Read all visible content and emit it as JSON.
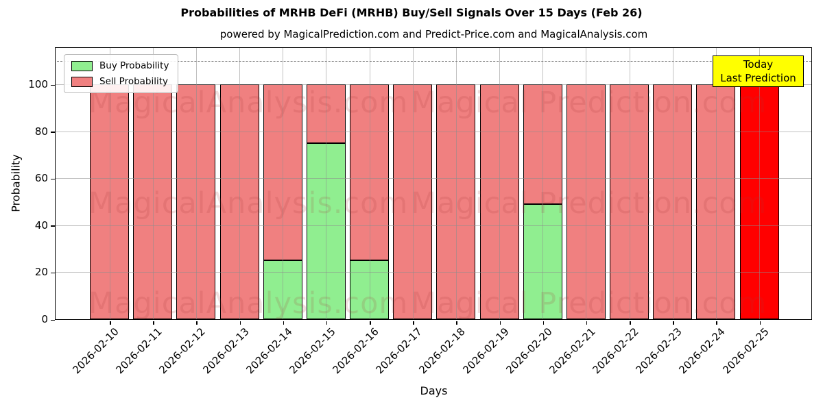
{
  "title": "Probabilities of MRHB DeFi (MRHB) Buy/Sell Signals Over 15 Days (Feb 26)",
  "subtitle": "powered by MagicalPrediction.com and Predict-Price.com and MagicalAnalysis.com",
  "legend": {
    "buy_label": "Buy Probability",
    "sell_label": "Sell Probability"
  },
  "annotation_box": {
    "line1": "Today",
    "line2": "Last Prediction",
    "bg": "#ffff00"
  },
  "watermarks": {
    "left": "MagicalAnalysis.com",
    "right": "Magical Prediction.com"
  },
  "colors": {
    "buy": "#90ee90",
    "sell": "#f08080",
    "today": "#ff0000",
    "grid": "#8c8c8c",
    "dashed_line": "#777777"
  },
  "chart_data": {
    "type": "bar",
    "stacked": true,
    "title": "Probabilities of MRHB DeFi (MRHB) Buy/Sell Signals Over 15 Days (Feb 26)",
    "xlabel": "Days",
    "ylabel": "Probability",
    "categories": [
      "2026-02-10",
      "2026-02-11",
      "2026-02-12",
      "2026-02-13",
      "2026-02-14",
      "2026-02-15",
      "2026-02-16",
      "2026-02-17",
      "2026-02-18",
      "2026-02-19",
      "2026-02-20",
      "2026-02-21",
      "2026-02-22",
      "2026-02-23",
      "2026-02-24",
      "2026-02-25"
    ],
    "series": [
      {
        "name": "Buy Probability",
        "color": "#90ee90",
        "values": [
          0,
          0,
          0,
          0,
          25,
          75,
          25,
          0,
          0,
          0,
          49,
          0,
          0,
          0,
          0,
          0
        ]
      },
      {
        "name": "Sell Probability",
        "color": "#f08080",
        "values": [
          100,
          100,
          100,
          100,
          75,
          25,
          75,
          100,
          100,
          100,
          51,
          100,
          100,
          100,
          100,
          100
        ]
      }
    ],
    "today_index": 15,
    "today_color": "#ff0000",
    "yticks": [
      0,
      20,
      40,
      60,
      80,
      100
    ],
    "ylim": [
      0,
      116
    ],
    "dashed_line_y": 110,
    "grid": true,
    "legend_position": "upper-left"
  }
}
